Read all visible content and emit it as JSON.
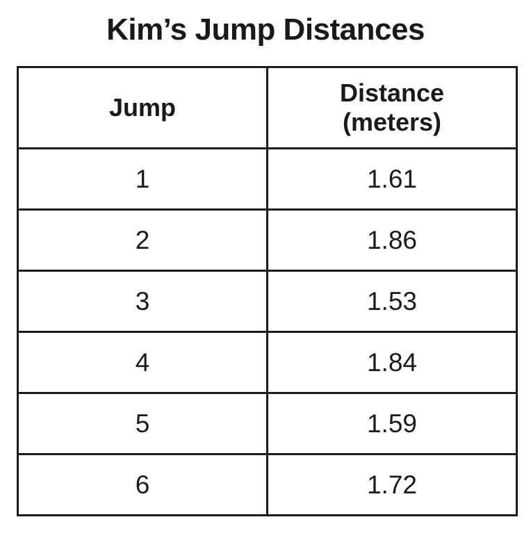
{
  "title": "Kim’s Jump Distances",
  "table": {
    "headers": [
      "Jump",
      "Distance (meters)"
    ],
    "rows": [
      [
        "1",
        "1.61"
      ],
      [
        "2",
        "1.86"
      ],
      [
        "3",
        "1.53"
      ],
      [
        "4",
        "1.84"
      ],
      [
        "5",
        "1.59"
      ],
      [
        "6",
        "1.72"
      ]
    ]
  }
}
